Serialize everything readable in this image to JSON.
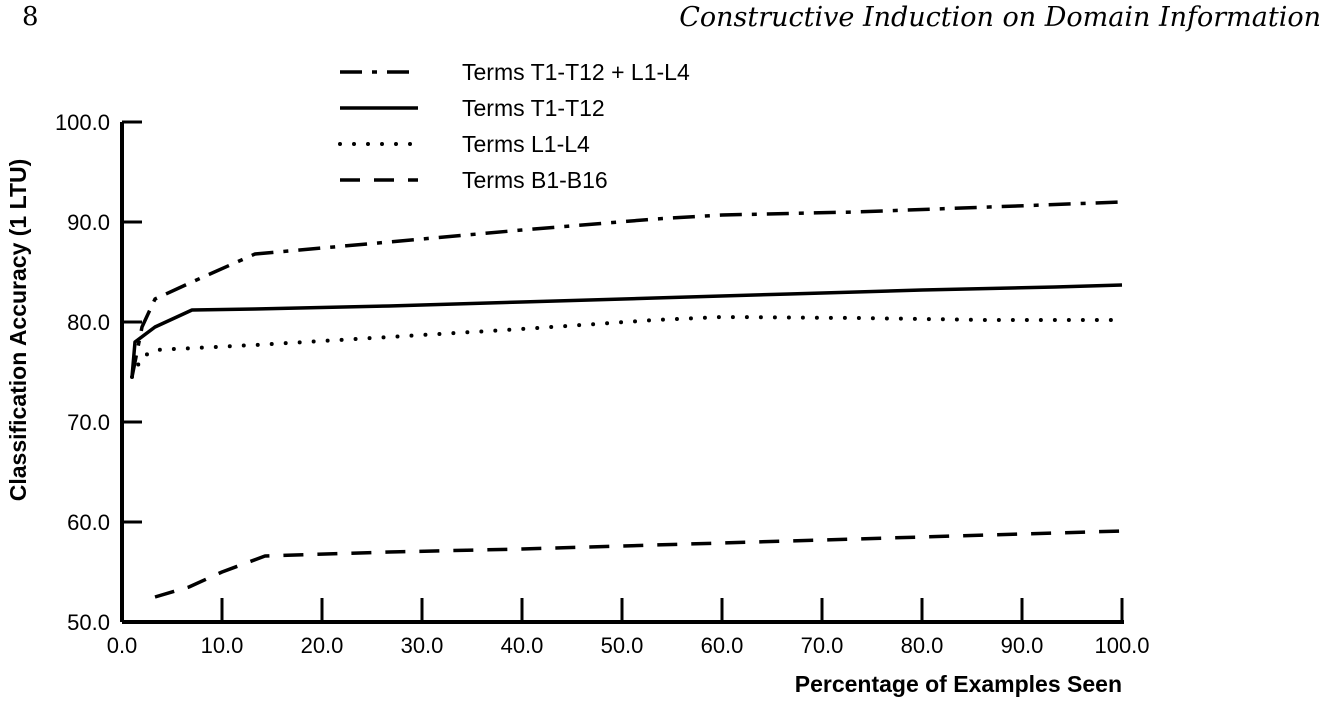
{
  "header": {
    "page_number": "8",
    "running_title": "Constructive Induction on Domain Information"
  },
  "chart_data": {
    "type": "line",
    "xlabel": "Percentage of Examples Seen",
    "ylabel": "Classification Accuracy (1 LTU)",
    "xlim": [
      0,
      100
    ],
    "ylim": [
      50,
      100
    ],
    "x_ticks": [
      "0.0",
      "10.0",
      "20.0",
      "30.0",
      "40.0",
      "50.0",
      "60.0",
      "70.0",
      "80.0",
      "90.0",
      "100.0"
    ],
    "y_ticks": [
      "50.0",
      "60.0",
      "70.0",
      "80.0",
      "90.0",
      "100.0"
    ],
    "grid": false,
    "legend_position": "top-left",
    "series": [
      {
        "name": "Terms T1-T12 + L1-L4",
        "style": "dash-dot",
        "points": [
          [
            1,
            74.5
          ],
          [
            2,
            79.5
          ],
          [
            3.3,
            82.3
          ],
          [
            7,
            84.0
          ],
          [
            13.3,
            86.8
          ],
          [
            26.7,
            88.0
          ],
          [
            40,
            89.2
          ],
          [
            53.3,
            90.3
          ],
          [
            60,
            90.7
          ],
          [
            73.3,
            91.0
          ],
          [
            86.7,
            91.5
          ],
          [
            100,
            92.0
          ]
        ]
      },
      {
        "name": "Terms T1-T12",
        "style": "solid",
        "points": [
          [
            1,
            74.5
          ],
          [
            1.3,
            78.0
          ],
          [
            3.3,
            79.5
          ],
          [
            7,
            81.2
          ],
          [
            13.3,
            81.3
          ],
          [
            26.7,
            81.6
          ],
          [
            40,
            82.0
          ],
          [
            53.3,
            82.4
          ],
          [
            66.7,
            82.8
          ],
          [
            80,
            83.2
          ],
          [
            93.3,
            83.5
          ],
          [
            100,
            83.7
          ]
        ]
      },
      {
        "name": "Terms L1-L4",
        "style": "dotted",
        "points": [
          [
            1,
            74.5
          ],
          [
            2,
            76.5
          ],
          [
            3.3,
            77.2
          ],
          [
            13.3,
            77.7
          ],
          [
            26.7,
            78.5
          ],
          [
            40,
            79.3
          ],
          [
            53.3,
            80.2
          ],
          [
            60,
            80.5
          ],
          [
            73.3,
            80.4
          ],
          [
            86.7,
            80.2
          ],
          [
            100,
            80.2
          ]
        ]
      },
      {
        "name": "Terms B1-B16",
        "style": "dashed",
        "points": [
          [
            3.3,
            52.5
          ],
          [
            6.7,
            53.5
          ],
          [
            10,
            55.0
          ],
          [
            14.3,
            56.6
          ],
          [
            26.7,
            57.0
          ],
          [
            40,
            57.3
          ],
          [
            53.3,
            57.7
          ],
          [
            66.7,
            58.1
          ],
          [
            80,
            58.5
          ],
          [
            93.3,
            58.9
          ],
          [
            100,
            59.1
          ]
        ]
      }
    ]
  }
}
